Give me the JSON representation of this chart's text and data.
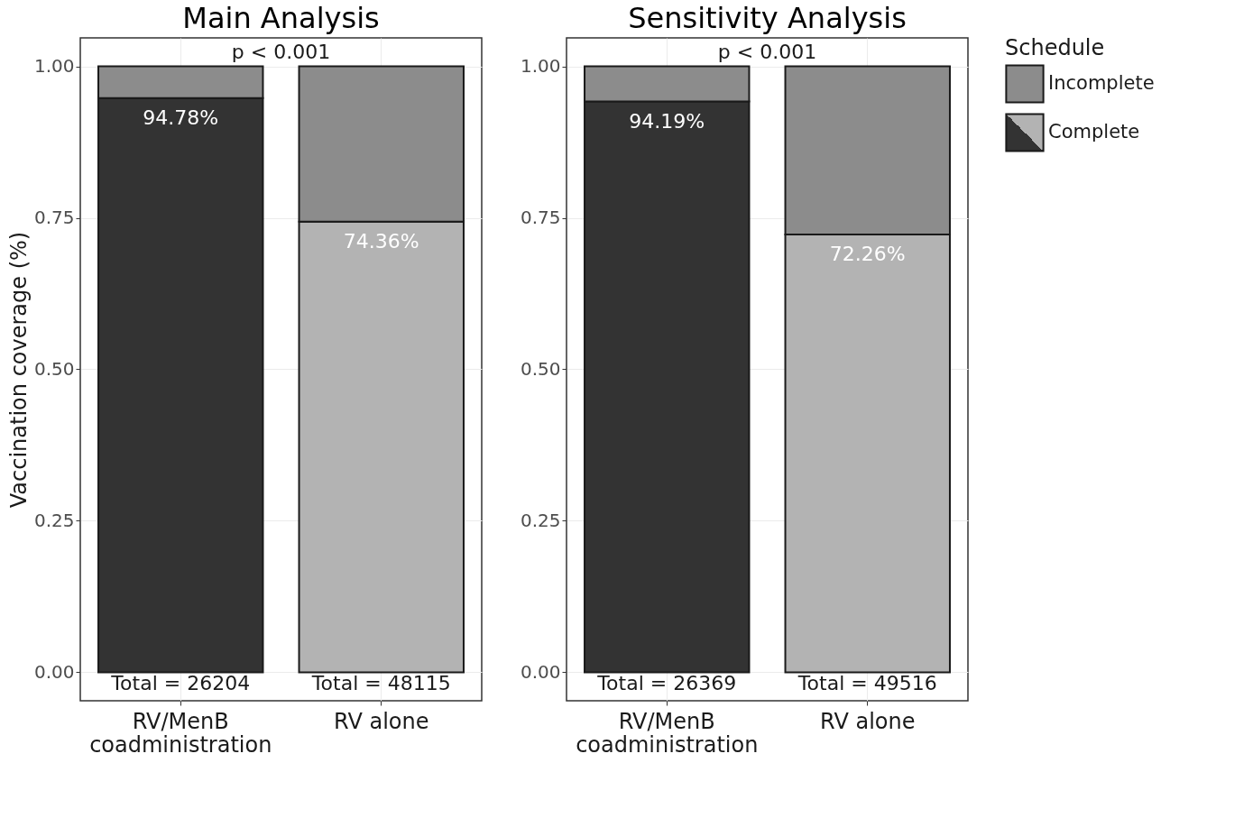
{
  "chart_data": [
    {
      "type": "bar",
      "title": "Main Analysis",
      "ylabel": "Vaccination coverage (%)",
      "categories": [
        "RV/MenB coadministration",
        "RV alone"
      ],
      "stacked": true,
      "series": [
        {
          "name": "Complete",
          "color": "#333333",
          "colors": [
            "#333333",
            "#b3b3b3"
          ],
          "values": [
            0.9478,
            0.7436
          ],
          "value_labels": [
            "94.78%",
            "74.36%"
          ]
        },
        {
          "name": "Incomplete",
          "color": "#8c8c8c",
          "values": [
            0.0522,
            0.2564
          ]
        }
      ],
      "ylim": [
        -0.047,
        1.047
      ],
      "yticks": [
        {
          "value": 0,
          "label": "0.00"
        },
        {
          "value": 0.25,
          "label": "0.25"
        },
        {
          "value": 0.5,
          "label": "0.50"
        },
        {
          "value": 0.75,
          "label": "0.75"
        },
        {
          "value": 1,
          "label": "1.00"
        }
      ],
      "grid": true,
      "legend": "right",
      "legend_title": "Schedule",
      "annotations": [
        "p < 0.001",
        {
          "text": "Total = 26204",
          "x": "RV/MenB coadministration",
          "y": 0
        },
        {
          "text": "Total = 48115",
          "x": "RV alone",
          "y": 0
        }
      ]
    },
    {
      "type": "bar",
      "title": "Sensitivity Analysis",
      "categories": [
        "RV/MenB coadministration",
        "RV alone"
      ],
      "stacked": true,
      "series": [
        {
          "name": "Complete",
          "color": "#333333",
          "colors": [
            "#333333",
            "#b3b3b3"
          ],
          "values": [
            0.9419,
            0.7226
          ],
          "value_labels": [
            "94.19%",
            "72.26%"
          ]
        },
        {
          "name": "Incomplete",
          "color": "#8c8c8c",
          "values": [
            0.0581,
            0.2774
          ]
        }
      ],
      "ylim": [
        -0.047,
        1.047
      ],
      "yticks": [
        {
          "value": 0,
          "label": "0.00"
        },
        {
          "value": 0.25,
          "label": "0.25"
        },
        {
          "value": 0.5,
          "label": "0.50"
        },
        {
          "value": 0.75,
          "label": "0.75"
        },
        {
          "value": 1,
          "label": "1.00"
        }
      ],
      "grid": true,
      "legend": "right",
      "annotations": [
        "p < 0.001",
        {
          "text": "Total = 26369",
          "x": "RV/MenB coadministration",
          "y": 0
        },
        {
          "text": "Total = 49516",
          "x": "RV alone",
          "y": 0
        }
      ]
    }
  ]
}
